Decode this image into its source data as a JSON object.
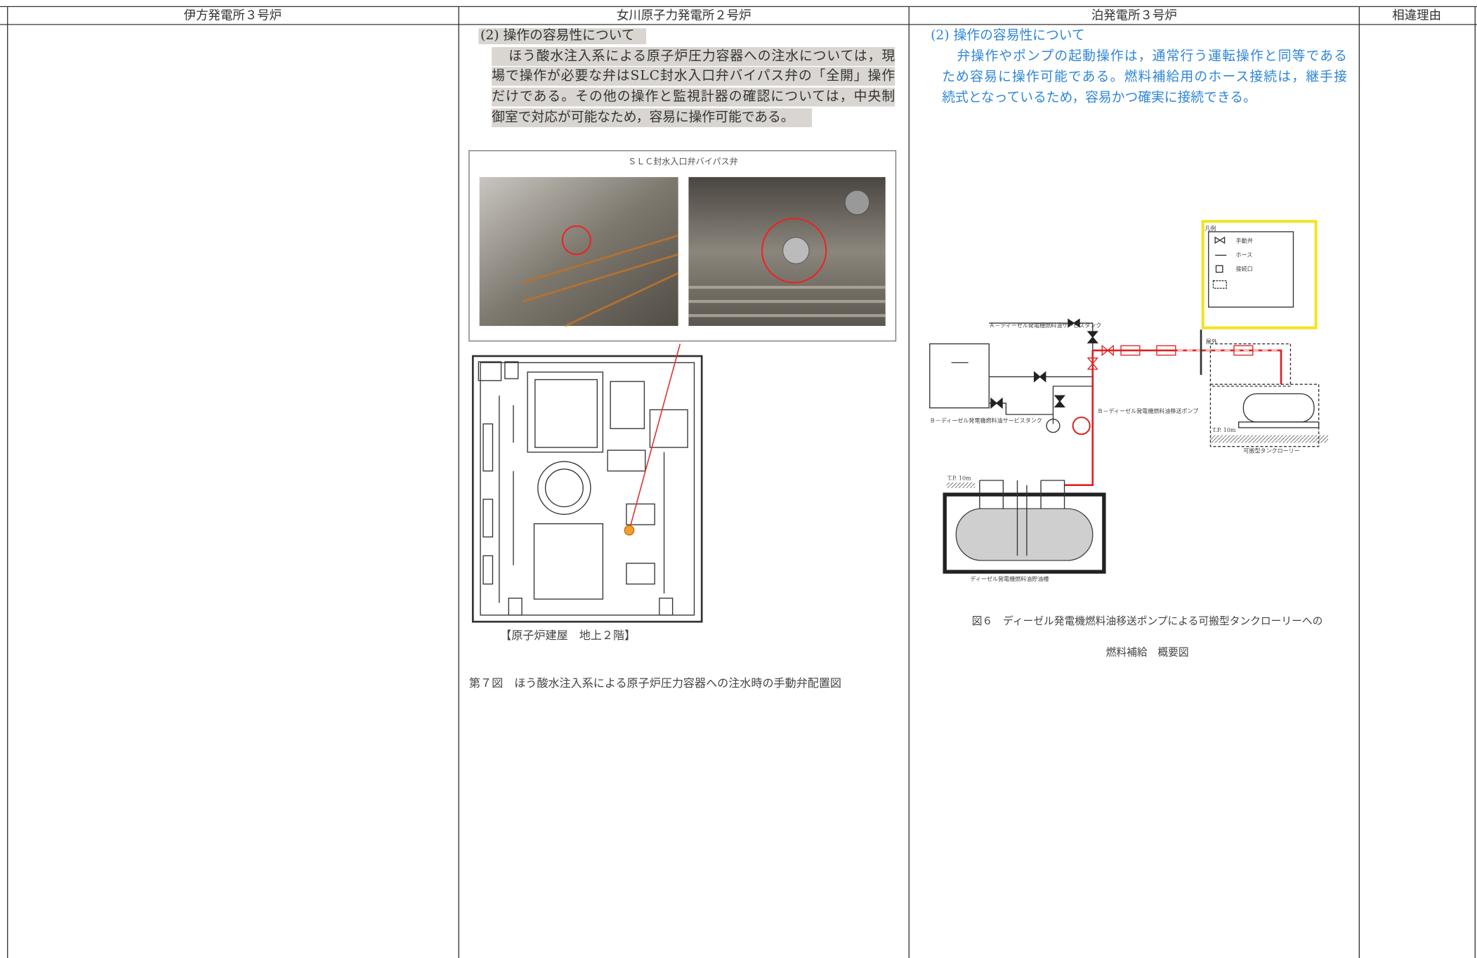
{
  "headers": [
    "伊方発電所３号炉",
    "女川原子力発電所２号炉",
    "泊発電所３号炉",
    "相違理由"
  ],
  "onagawa": {
    "heading": "(2) 操作の容易性について",
    "body": [
      "ほう酸水注入系による原子炉圧力容器への注水については，現",
      "場で操作が必要な弁はSLC封水入口弁バイパス弁の「全開」操作",
      "だけである。その他の操作と監視計器の確認については，中央制",
      "御室で対応が可能なため，容易に操作可能である。"
    ],
    "photo_caption": "ＳＬＣ封水入口弁バイパス弁",
    "plan_caption": "【原子炉建屋　地上２階】",
    "figure_caption": "第７図　ほう酸水注入系による原子炉圧力容器への注水時の手動弁配置図"
  },
  "tomari": {
    "heading": "(2) 操作の容易性について",
    "body": [
      "弁操作やポンプの起動操作は，通常行う運転操作と同等である",
      "ため容易に操作可能である。燃料補給用のホース接続は，継手接",
      "続式となっているため，容易かつ確実に接続できる。"
    ],
    "legend": {
      "title": "凡例",
      "items": [
        "手動弁",
        "ホース",
        "接続口"
      ]
    },
    "labels": {
      "tank_a": "Ａ－ディーゼル発電機燃料油サービスタンク",
      "tank_b": "Ｂ－ディーゼル発電機燃料油サービスタンク",
      "pump_b": "Ｂ－ディーゼル発電機燃料油移送ポンプ",
      "outdoor": "屋外",
      "tp_left": "T.P. 10m",
      "tp_right": "T.P. 10m",
      "storage": "ディーゼル発電機燃料油貯油槽",
      "lorry": "可搬型タンクローリー"
    },
    "figure_caption": [
      "図６　ディーゼル発電機燃料油移送ポンプによる可搬型タンクローリーへの",
      "燃料補給　概要図"
    ]
  }
}
